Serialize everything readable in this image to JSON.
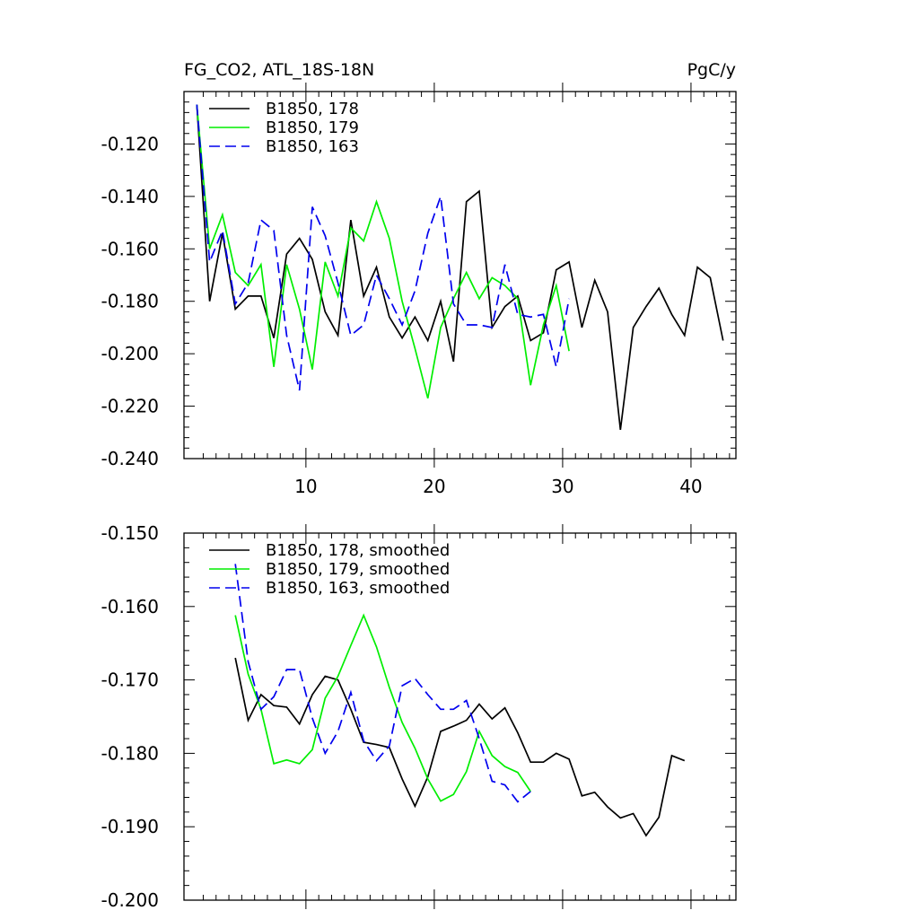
{
  "chart_data": [
    {
      "type": "line",
      "title_left": "FG_CO2, ATL_18S-18N",
      "title_right": "PgC/y",
      "xlim": [
        0.5,
        43.5
      ],
      "ylim": [
        -0.24,
        -0.1
      ],
      "xticks": [
        10,
        20,
        30,
        40
      ],
      "yticks": [
        -0.12,
        -0.14,
        -0.16,
        -0.18,
        -0.2,
        -0.22,
        -0.24
      ],
      "ytick_labels": [
        "-0.120",
        "-0.140",
        "-0.160",
        "-0.180",
        "-0.200",
        "-0.220",
        "-0.240"
      ],
      "legend_position": "top-left",
      "series": [
        {
          "name": "B1850, 178",
          "color": "#000000",
          "dash": "solid",
          "x": [
            1.5,
            2.5,
            3.5,
            4.5,
            5.5,
            6.5,
            7.5,
            8.5,
            9.5,
            10.5,
            11.5,
            12.5,
            13.5,
            14.5,
            15.5,
            16.5,
            17.5,
            18.5,
            19.5,
            20.5,
            21.5,
            22.5,
            23.5,
            24.5,
            25.5,
            26.5,
            27.5,
            28.5,
            29.5,
            30.5,
            31.5,
            32.5,
            33.5,
            34.5,
            35.5,
            36.5,
            37.5,
            38.5,
            39.5,
            40.5,
            41.5,
            42.5
          ],
          "y": [
            -0.105,
            -0.18,
            -0.154,
            -0.183,
            -0.178,
            -0.178,
            -0.194,
            -0.162,
            -0.156,
            -0.164,
            -0.184,
            -0.193,
            -0.149,
            -0.178,
            -0.167,
            -0.186,
            -0.194,
            -0.186,
            -0.195,
            -0.18,
            -0.203,
            -0.142,
            -0.138,
            -0.19,
            -0.182,
            -0.178,
            -0.195,
            -0.192,
            -0.168,
            -0.165,
            -0.19,
            -0.172,
            -0.184,
            -0.229,
            -0.19,
            -0.182,
            -0.175,
            -0.185,
            -0.193,
            -0.167,
            -0.171,
            -0.195
          ]
        },
        {
          "name": "B1850, 179",
          "color": "#00ee00",
          "dash": "solid",
          "x": [
            1.5,
            2.5,
            3.5,
            4.5,
            5.5,
            6.5,
            7.5,
            8.5,
            9.5,
            10.5,
            11.5,
            12.5,
            13.5,
            14.5,
            15.5,
            16.5,
            17.5,
            18.5,
            19.5,
            20.5,
            21.5,
            22.5,
            23.5,
            24.5,
            25.5,
            26.5,
            27.5,
            28.5,
            29.5,
            30.5
          ],
          "y": [
            -0.105,
            -0.16,
            -0.147,
            -0.169,
            -0.174,
            -0.166,
            -0.205,
            -0.166,
            -0.183,
            -0.206,
            -0.165,
            -0.178,
            -0.152,
            -0.157,
            -0.142,
            -0.156,
            -0.18,
            -0.198,
            -0.217,
            -0.19,
            -0.179,
            -0.169,
            -0.179,
            -0.171,
            -0.174,
            -0.179,
            -0.212,
            -0.189,
            -0.174,
            -0.199
          ]
        },
        {
          "name": "B1850, 163",
          "color": "#0000ee",
          "dash": "dashed",
          "x": [
            1.5,
            2.5,
            3.5,
            4.5,
            5.5,
            6.5,
            7.5,
            8.5,
            9.5,
            10.5,
            11.5,
            12.5,
            13.5,
            14.5,
            15.5,
            16.5,
            17.5,
            18.5,
            19.5,
            20.5,
            21.5,
            22.5,
            23.5,
            24.5,
            25.5,
            26.5,
            27.5,
            28.5,
            29.5,
            30.5
          ],
          "y": [
            -0.105,
            -0.165,
            -0.153,
            -0.181,
            -0.173,
            -0.149,
            -0.153,
            -0.193,
            -0.214,
            -0.144,
            -0.155,
            -0.173,
            -0.193,
            -0.189,
            -0.17,
            -0.179,
            -0.189,
            -0.176,
            -0.154,
            -0.14,
            -0.181,
            -0.189,
            -0.189,
            -0.19,
            -0.166,
            -0.185,
            -0.186,
            -0.185,
            -0.205,
            -0.179
          ]
        }
      ]
    },
    {
      "type": "line",
      "xlim": [
        0.5,
        43.5
      ],
      "ylim": [
        -0.2,
        -0.15
      ],
      "xticks": [
        10,
        20,
        30,
        40
      ],
      "yticks": [
        -0.15,
        -0.16,
        -0.17,
        -0.18,
        -0.19,
        -0.2
      ],
      "ytick_labels": [
        "-0.150",
        "-0.160",
        "-0.170",
        "-0.180",
        "-0.190",
        "-0.200"
      ],
      "legend_position": "top-left",
      "series": [
        {
          "name": "B1850, 178, smoothed",
          "color": "#000000",
          "dash": "solid",
          "x": [
            4.5,
            5.5,
            6.5,
            7.5,
            8.5,
            9.5,
            10.5,
            11.5,
            12.5,
            13.5,
            14.5,
            15.5,
            16.5,
            17.5,
            18.5,
            19.5,
            20.5,
            21.5,
            22.5,
            23.5,
            24.5,
            25.5,
            26.5,
            27.5,
            28.5,
            29.5,
            30.5,
            31.5,
            32.5,
            33.5,
            34.5,
            35.5,
            36.5,
            37.5,
            38.5,
            39.5
          ],
          "y": [
            -0.167,
            -0.1755,
            -0.172,
            -0.1735,
            -0.1737,
            -0.176,
            -0.172,
            -0.1695,
            -0.17,
            -0.174,
            -0.1785,
            -0.1788,
            -0.1792,
            -0.1835,
            -0.1872,
            -0.1832,
            -0.177,
            -0.1763,
            -0.1755,
            -0.1733,
            -0.1753,
            -0.1738,
            -0.1772,
            -0.1812,
            -0.1812,
            -0.18,
            -0.1808,
            -0.1858,
            -0.1853,
            -0.1873,
            -0.1888,
            -0.1882,
            -0.1912,
            -0.1887,
            -0.1803,
            -0.181
          ]
        },
        {
          "name": "B1850, 179, smoothed",
          "color": "#00ee00",
          "dash": "solid",
          "x": [
            4.5,
            5.5,
            6.5,
            7.5,
            8.5,
            9.5,
            10.5,
            11.5,
            12.5,
            13.5,
            14.5,
            15.5,
            16.5,
            17.5,
            18.5,
            19.5,
            20.5,
            21.5,
            22.5,
            23.5,
            24.5,
            25.5,
            26.5,
            27.5
          ],
          "y": [
            -0.1612,
            -0.1692,
            -0.174,
            -0.1814,
            -0.1809,
            -0.1814,
            -0.1795,
            -0.1725,
            -0.1695,
            -0.1653,
            -0.1612,
            -0.1655,
            -0.171,
            -0.1758,
            -0.1793,
            -0.1835,
            -0.1865,
            -0.1856,
            -0.1825,
            -0.177,
            -0.1803,
            -0.1818,
            -0.1826,
            -0.1852
          ]
        },
        {
          "name": "B1850, 163, smoothed",
          "color": "#0000ee",
          "dash": "dashed",
          "x": [
            4.5,
            5.5,
            6.5,
            7.5,
            8.5,
            9.5,
            10.5,
            11.5,
            12.5,
            13.5,
            14.5,
            15.5,
            16.5,
            17.5,
            18.5,
            19.5,
            20.5,
            21.5,
            22.5,
            23.5,
            24.5,
            25.5,
            26.5,
            27.5
          ],
          "y": [
            -0.1542,
            -0.1675,
            -0.174,
            -0.1723,
            -0.1686,
            -0.1686,
            -0.1752,
            -0.18,
            -0.177,
            -0.1717,
            -0.1783,
            -0.181,
            -0.179,
            -0.1708,
            -0.1698,
            -0.172,
            -0.174,
            -0.174,
            -0.1728,
            -0.178,
            -0.1838,
            -0.1843,
            -0.1866,
            -0.1852
          ]
        }
      ]
    }
  ]
}
